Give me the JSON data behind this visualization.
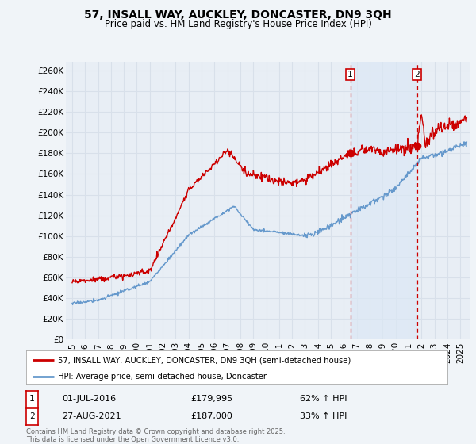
{
  "title": "57, INSALL WAY, AUCKLEY, DONCASTER, DN9 3QH",
  "subtitle": "Price paid vs. HM Land Registry's House Price Index (HPI)",
  "background_color": "#f0f4f8",
  "plot_bg_color": "#e8eef5",
  "grid_color": "#d8e0ea",
  "shade_color": "#dce8f5",
  "ylabel_ticks": [
    "£0",
    "£20K",
    "£40K",
    "£60K",
    "£80K",
    "£100K",
    "£120K",
    "£140K",
    "£160K",
    "£180K",
    "£200K",
    "£220K",
    "£240K",
    "£260K"
  ],
  "ytick_values": [
    0,
    20000,
    40000,
    60000,
    80000,
    100000,
    120000,
    140000,
    160000,
    180000,
    200000,
    220000,
    240000,
    260000
  ],
  "xlim_start": 1994.5,
  "xlim_end": 2025.7,
  "ylim_min": 0,
  "ylim_max": 268000,
  "sale1_date": 2016.5,
  "sale1_price": 179995,
  "sale2_date": 2021.665,
  "sale2_price": 187000,
  "line1_color": "#cc0000",
  "line2_color": "#6699cc",
  "marker_color": "#cc0000",
  "dashed_line_color": "#cc0000",
  "legend_label1": "57, INSALL WAY, AUCKLEY, DONCASTER, DN9 3QH (semi-detached house)",
  "legend_label2": "HPI: Average price, semi-detached house, Doncaster",
  "footnote": "Contains HM Land Registry data © Crown copyright and database right 2025.\nThis data is licensed under the Open Government Licence v3.0.",
  "x_tick_years": [
    1995,
    1996,
    1997,
    1998,
    1999,
    2000,
    2001,
    2002,
    2003,
    2004,
    2005,
    2006,
    2007,
    2008,
    2009,
    2010,
    2011,
    2012,
    2013,
    2014,
    2015,
    2016,
    2017,
    2018,
    2019,
    2020,
    2021,
    2022,
    2023,
    2024,
    2025
  ]
}
